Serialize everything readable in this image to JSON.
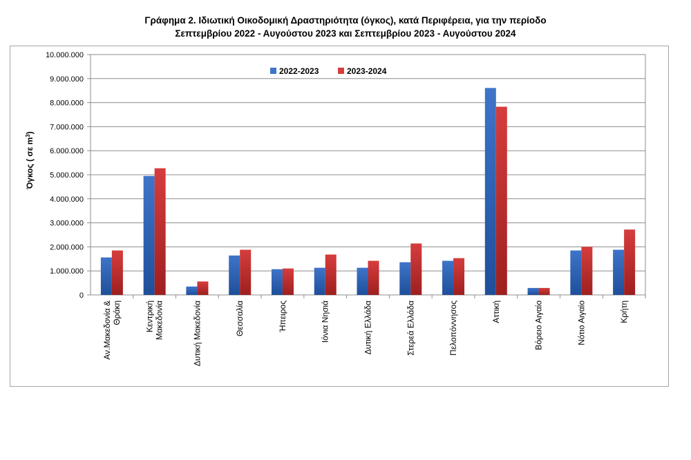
{
  "title": {
    "line1": "Γράφημα 2.  Ιδιωτική Οικοδομική Δραστηριότητα (όγκος), κατά Περιφέρεια, για την περίοδο",
    "line2": "Σεπτεμβρίου 2022 - Αυγούστου 2023 και Σεπτεμβρίου 2023 - Αυγούστου 2024"
  },
  "chart_data": {
    "type": "bar",
    "ylabel_main": "Όγκος ( σε  m",
    "ylabel_sup": "3",
    "ylabel_close": ")",
    "ylim": [
      0,
      10000000
    ],
    "yticks": [
      "0",
      "1.000.000",
      "2.000.000",
      "3.000.000",
      "4.000.000",
      "5.000.000",
      "6.000.000",
      "7.000.000",
      "8.000.000",
      "9.000.000",
      "10.000.000"
    ],
    "grid": true,
    "legend_position": "top-center",
    "categories": [
      [
        "Αν.Μακεδονία &",
        "Θράκη"
      ],
      [
        "Κεντρική",
        "Μακεδονία"
      ],
      [
        "Δυτική Μακεδονία"
      ],
      [
        "Θεσσαλία"
      ],
      [
        "Ήπειρος"
      ],
      [
        "Ιόνια Νησιά"
      ],
      [
        "Δυτική Ελλάδα"
      ],
      [
        "Στερεά Ελλάδα"
      ],
      [
        "Πελοπόννησος"
      ],
      [
        "Αττική"
      ],
      [
        "Βόρειο Αιγαίο"
      ],
      [
        "Νότιο Αιγαίο"
      ],
      [
        "Κρήτη"
      ]
    ],
    "series": [
      {
        "name": "2022-2023",
        "color": "#3f74c9",
        "color_dark": "#1e4f9a",
        "values": [
          1560000,
          4950000,
          350000,
          1640000,
          1070000,
          1130000,
          1130000,
          1360000,
          1420000,
          8610000,
          290000,
          1850000,
          1880000
        ]
      },
      {
        "name": "2023-2024",
        "color": "#d63d3d",
        "color_dark": "#9e1f1f",
        "values": [
          1850000,
          5270000,
          560000,
          1880000,
          1100000,
          1680000,
          1420000,
          2140000,
          1530000,
          7830000,
          290000,
          2000000,
          2720000
        ]
      }
    ]
  }
}
